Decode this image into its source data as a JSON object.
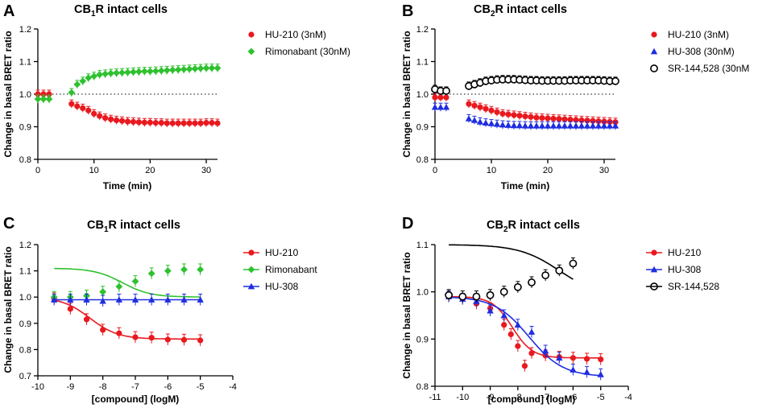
{
  "chart_data": [
    {
      "panel": "A",
      "type": "scatter",
      "title_main": "CB",
      "title_sub": "1",
      "title_rest": "R intact cells",
      "xlabel": "Time (min)",
      "ylabel": "Change in basal BRET ratio",
      "xlim": [
        0,
        32
      ],
      "ylim": [
        0.8,
        1.2
      ],
      "xticks": [
        "0",
        "10",
        "20",
        "30"
      ],
      "yticks": [
        "0.8",
        "0.9",
        "1.0",
        "1.1",
        "1.2"
      ],
      "baseline": 1.0,
      "series": [
        {
          "name": "HU-210 (3nM)",
          "color": "#e8191f",
          "marker": "circle",
          "x": [
            0,
            1,
            2,
            6,
            7,
            8,
            9,
            10,
            11,
            12,
            13,
            14,
            15,
            16,
            17,
            18,
            19,
            20,
            21,
            22,
            23,
            24,
            25,
            26,
            27,
            28,
            29,
            30,
            31,
            32
          ],
          "y": [
            1.0,
            1.0,
            1.0,
            0.97,
            0.963,
            0.957,
            0.95,
            0.94,
            0.933,
            0.927,
            0.923,
            0.92,
            0.918,
            0.916,
            0.915,
            0.914,
            0.913,
            0.913,
            0.912,
            0.912,
            0.911,
            0.911,
            0.911,
            0.911,
            0.911,
            0.911,
            0.911,
            0.912,
            0.912,
            0.911
          ]
        },
        {
          "name": "Rimonabant (30nM)",
          "color": "#2fc12f",
          "marker": "diamond",
          "x": [
            0,
            1,
            2,
            6,
            7,
            8,
            9,
            10,
            11,
            12,
            13,
            14,
            15,
            16,
            17,
            18,
            19,
            20,
            21,
            22,
            23,
            24,
            25,
            26,
            27,
            28,
            29,
            30,
            31,
            32
          ],
          "y": [
            0.985,
            0.985,
            0.985,
            1.005,
            1.03,
            1.04,
            1.05,
            1.055,
            1.06,
            1.062,
            1.064,
            1.065,
            1.066,
            1.067,
            1.068,
            1.069,
            1.07,
            1.07,
            1.071,
            1.072,
            1.073,
            1.074,
            1.075,
            1.076,
            1.077,
            1.078,
            1.079,
            1.08,
            1.08,
            1.08
          ]
        }
      ]
    },
    {
      "panel": "B",
      "type": "scatter",
      "title_main": "CB",
      "title_sub": "2",
      "title_rest": "R intact cells",
      "xlabel": "Time (min)",
      "ylabel": "Change in basal BRET ratio",
      "xlim": [
        0,
        32
      ],
      "ylim": [
        0.8,
        1.2
      ],
      "xticks": [
        "0",
        "10",
        "20",
        "30"
      ],
      "yticks": [
        "0.8",
        "0.9",
        "1.0",
        "1.1",
        "1.2"
      ],
      "baseline": 1.0,
      "series": [
        {
          "name": "HU-210 (3nM)",
          "color": "#e8191f",
          "marker": "circle",
          "x": [
            0,
            1,
            2,
            6,
            7,
            8,
            9,
            10,
            11,
            12,
            13,
            14,
            15,
            16,
            17,
            18,
            19,
            20,
            21,
            22,
            23,
            24,
            25,
            26,
            27,
            28,
            29,
            30,
            31,
            32
          ],
          "y": [
            0.99,
            0.99,
            0.99,
            0.97,
            0.965,
            0.96,
            0.955,
            0.95,
            0.945,
            0.94,
            0.938,
            0.936,
            0.934,
            0.932,
            0.93,
            0.928,
            0.927,
            0.926,
            0.925,
            0.924,
            0.923,
            0.922,
            0.921,
            0.92,
            0.919,
            0.918,
            0.917,
            0.916,
            0.915,
            0.914
          ]
        },
        {
          "name": "HU-308 (30nM)",
          "color": "#1f2de0",
          "marker": "triangle",
          "x": [
            0,
            1,
            2,
            6,
            7,
            8,
            9,
            10,
            11,
            12,
            13,
            14,
            15,
            16,
            17,
            18,
            19,
            20,
            21,
            22,
            23,
            24,
            25,
            26,
            27,
            28,
            29,
            30,
            31,
            32
          ],
          "y": [
            0.96,
            0.96,
            0.96,
            0.925,
            0.92,
            0.915,
            0.912,
            0.91,
            0.908,
            0.906,
            0.905,
            0.904,
            0.904,
            0.903,
            0.903,
            0.903,
            0.903,
            0.903,
            0.903,
            0.903,
            0.903,
            0.903,
            0.903,
            0.903,
            0.903,
            0.903,
            0.903,
            0.903,
            0.903,
            0.903
          ]
        },
        {
          "name": "SR-144,528 (30nM",
          "color": "#000000",
          "marker": "open-circle",
          "x": [
            0,
            1,
            2,
            6,
            7,
            8,
            9,
            10,
            11,
            12,
            13,
            14,
            15,
            16,
            17,
            18,
            19,
            20,
            21,
            22,
            23,
            24,
            25,
            26,
            27,
            28,
            29,
            30,
            31,
            32
          ],
          "y": [
            1.015,
            1.01,
            1.01,
            1.025,
            1.03,
            1.035,
            1.04,
            1.042,
            1.044,
            1.045,
            1.045,
            1.045,
            1.044,
            1.043,
            1.042,
            1.042,
            1.041,
            1.041,
            1.041,
            1.041,
            1.041,
            1.042,
            1.042,
            1.042,
            1.042,
            1.042,
            1.042,
            1.041,
            1.04,
            1.04
          ]
        }
      ]
    },
    {
      "panel": "C",
      "type": "scatter",
      "title_main": "CB",
      "title_sub": "1",
      "title_rest": "R intact cells",
      "xlabel": "[compound] (logM)",
      "ylabel": "Change in basal BRET ratio",
      "xlim": [
        -10,
        -4
      ],
      "ylim": [
        0.7,
        1.2
      ],
      "xticks": [
        "-10",
        "-9",
        "-8",
        "-7",
        "-6",
        "-5",
        "-4"
      ],
      "yticks": [
        "0.7",
        "0.8",
        "0.9",
        "1.0",
        "1.1",
        "1.2"
      ],
      "series": [
        {
          "name": "HU-210",
          "color": "#e8191f",
          "marker": "circle",
          "x": [
            -9.5,
            -9.0,
            -8.5,
            -8.0,
            -7.5,
            -7.0,
            -6.5,
            -6.0,
            -5.5,
            -5.0
          ],
          "y": [
            0.995,
            0.955,
            0.915,
            0.875,
            0.862,
            0.847,
            0.845,
            0.838,
            0.837,
            0.835
          ],
          "fit": {
            "top": 1.0,
            "bottom": 0.84,
            "logEC50": -8.4,
            "hill": 1.0
          }
        },
        {
          "name": "Rimonabant",
          "color": "#2fc12f",
          "marker": "diamond",
          "x": [
            -9.5,
            -9.0,
            -8.5,
            -8.0,
            -7.5,
            -7.0,
            -6.5,
            -6.0,
            -5.5,
            -5.0
          ],
          "y": [
            1.0,
            1.0,
            1.005,
            1.02,
            1.04,
            1.06,
            1.09,
            1.1,
            1.105,
            1.105
          ],
          "fit": {
            "top": 1.11,
            "bottom": 1.0,
            "logEC50": -7.4,
            "hill": 1.0
          }
        },
        {
          "name": "HU-308",
          "color": "#1f2de0",
          "marker": "triangle",
          "x": [
            -9.5,
            -9.0,
            -8.5,
            -8.0,
            -7.5,
            -7.0,
            -6.5,
            -6.0,
            -5.5,
            -5.0
          ],
          "y": [
            0.99,
            0.99,
            0.99,
            0.985,
            0.99,
            0.99,
            0.99,
            0.99,
            0.99,
            0.99
          ],
          "fit": {
            "top": 0.99,
            "bottom": 0.99,
            "logEC50": -7.5,
            "hill": 1.0
          }
        }
      ]
    },
    {
      "panel": "D",
      "type": "scatter",
      "title_main": "CB",
      "title_sub": "2",
      "title_rest": "R intact cells",
      "xlabel": "[compound] (logM)",
      "ylabel": "Change in basal BRET ratio",
      "xlim": [
        -11,
        -4
      ],
      "ylim": [
        0.8,
        1.1
      ],
      "xticks": [
        "-11",
        "-10",
        "-9",
        "-8",
        "-7",
        "-6",
        "-5",
        "-4"
      ],
      "yticks": [
        "0.8",
        "0.9",
        "1.0",
        "1.1"
      ],
      "series": [
        {
          "name": "HU-210",
          "color": "#e8191f",
          "marker": "circle",
          "x": [
            -10.5,
            -10.0,
            -9.5,
            -9.0,
            -8.5,
            -8.25,
            -8.0,
            -7.75,
            -7.5,
            -7.0,
            -6.5,
            -6.0,
            -5.5,
            -5.0
          ],
          "y": [
            0.99,
            0.985,
            0.975,
            0.965,
            0.93,
            0.91,
            0.885,
            0.843,
            0.87,
            0.865,
            0.862,
            0.86,
            0.858,
            0.857
          ],
          "fit": {
            "top": 0.99,
            "bottom": 0.86,
            "logEC50": -8.2,
            "hill": 1.2
          }
        },
        {
          "name": "HU-308",
          "color": "#1f2de0",
          "marker": "triangle",
          "x": [
            -10.5,
            -10.0,
            -9.5,
            -9.0,
            -8.5,
            -8.0,
            -7.5,
            -7.0,
            -6.5,
            -6.0,
            -5.5,
            -5.0
          ],
          "y": [
            0.99,
            0.985,
            0.98,
            0.96,
            0.95,
            0.93,
            0.915,
            0.875,
            0.86,
            0.835,
            0.83,
            0.825
          ],
          "fit": {
            "top": 0.99,
            "bottom": 0.82,
            "logEC50": -7.6,
            "hill": 0.7
          }
        },
        {
          "name": "SR-144,528",
          "color": "#000000",
          "marker": "open-circle",
          "x": [
            -10.5,
            -10.0,
            -9.5,
            -9.0,
            -8.5,
            -8.0,
            -7.5,
            -7.0,
            -6.5,
            -6.0
          ],
          "y": [
            0.993,
            0.99,
            0.99,
            0.993,
            1.0,
            1.01,
            1.02,
            1.035,
            1.045,
            1.06
          ],
          "fit": {
            "top": 1.1,
            "bottom": 0.99,
            "logEC50": -6.5,
            "hill": 0.6
          }
        }
      ]
    }
  ]
}
